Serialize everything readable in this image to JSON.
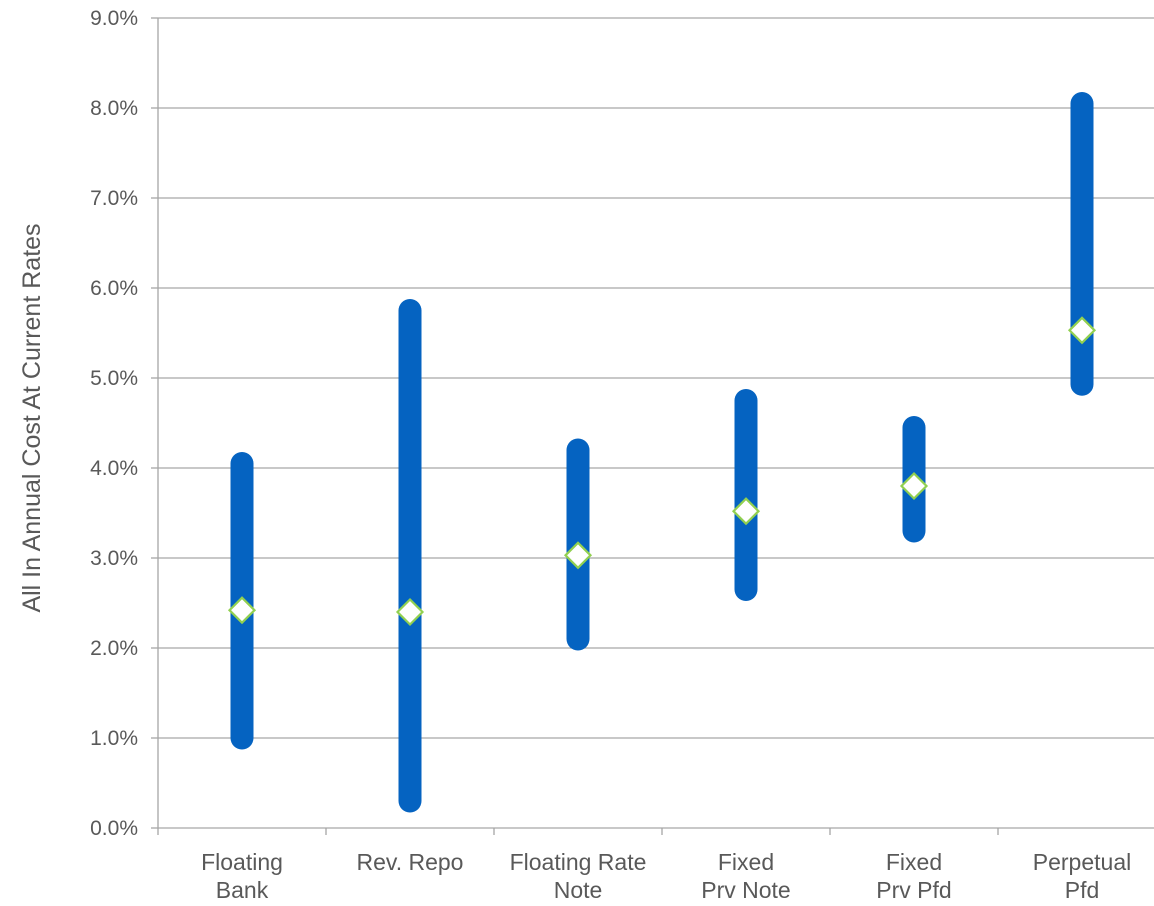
{
  "chart_data": {
    "type": "range",
    "title": "",
    "xlabel": "",
    "ylabel": "All In Annual Cost At Current Rates",
    "ylim": [
      0,
      9
    ],
    "yticks": [
      0,
      1,
      2,
      3,
      4,
      5,
      6,
      7,
      8,
      9
    ],
    "ytick_labels": [
      "0.0%",
      "1.0%",
      "2.0%",
      "3.0%",
      "4.0%",
      "5.0%",
      "6.0%",
      "7.0%",
      "8.0%",
      "9.0%"
    ],
    "grid": true,
    "categories": [
      [
        "Floating",
        "Bank"
      ],
      [
        "Rev. Repo"
      ],
      [
        "Floating Rate",
        "Note"
      ],
      [
        "Fixed",
        "Prv Note"
      ],
      [
        "Fixed",
        "Prv Pfd"
      ],
      [
        "Perpetual",
        "Pfd"
      ]
    ],
    "series": [
      {
        "low": [
          1.0,
          0.3,
          2.1,
          2.65,
          3.3,
          4.93
        ],
        "high": [
          4.05,
          5.75,
          4.2,
          4.75,
          4.45,
          8.05
        ]
      },
      {
        "marker": "diamond",
        "values": [
          2.42,
          2.4,
          3.03,
          3.52,
          3.8,
          5.53
        ]
      }
    ],
    "colors": {
      "range": "#0563C1",
      "marker_fill": "#ffffff",
      "marker_stroke": "#92D050",
      "grid": "#A6A6A6",
      "text": "#595959"
    }
  }
}
